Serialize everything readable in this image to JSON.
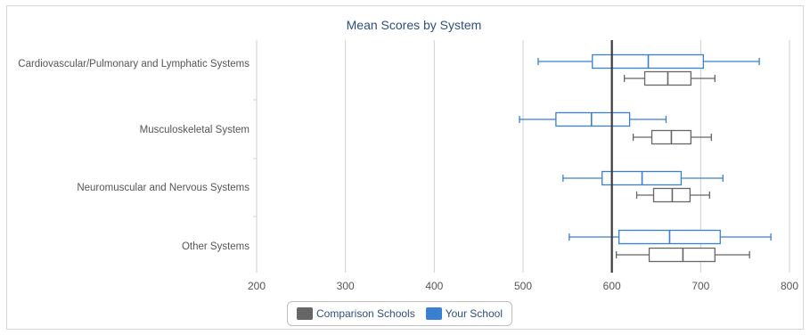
{
  "chart_data": {
    "type": "boxplot",
    "title": "Mean Scores by System",
    "orientation": "horizontal",
    "xlim": [
      200,
      800
    ],
    "x_ticks": [
      200,
      300,
      400,
      500,
      600,
      700,
      800
    ],
    "reference_line": 600,
    "categories": [
      "Cardiovascular/Pulmonary and Lymphatic Systems",
      "Musculoskeletal System",
      "Neuromuscular and Nervous Systems",
      "Other Systems"
    ],
    "series": [
      {
        "name": "Your School",
        "color": "#3b7fd1",
        "boxes": [
          {
            "min": 517,
            "q1": 578,
            "median": 641,
            "q3": 703,
            "max": 766
          },
          {
            "min": 496,
            "q1": 537,
            "median": 577,
            "q3": 620,
            "max": 661
          },
          {
            "min": 545,
            "q1": 589,
            "median": 634,
            "q3": 678,
            "max": 725
          },
          {
            "min": 552,
            "q1": 608,
            "median": 665,
            "q3": 722,
            "max": 779
          }
        ]
      },
      {
        "name": "Comparison Schools",
        "color": "#666666",
        "boxes": [
          {
            "min": 614,
            "q1": 637,
            "median": 663,
            "q3": 689,
            "max": 716
          },
          {
            "min": 624,
            "q1": 645,
            "median": 667,
            "q3": 689,
            "max": 712
          },
          {
            "min": 628,
            "q1": 647,
            "median": 668,
            "q3": 688,
            "max": 710
          },
          {
            "min": 605,
            "q1": 642,
            "median": 680,
            "q3": 716,
            "max": 755
          }
        ]
      }
    ],
    "legend": {
      "position": "bottom",
      "items": [
        "Comparison Schools",
        "Your School"
      ]
    }
  }
}
